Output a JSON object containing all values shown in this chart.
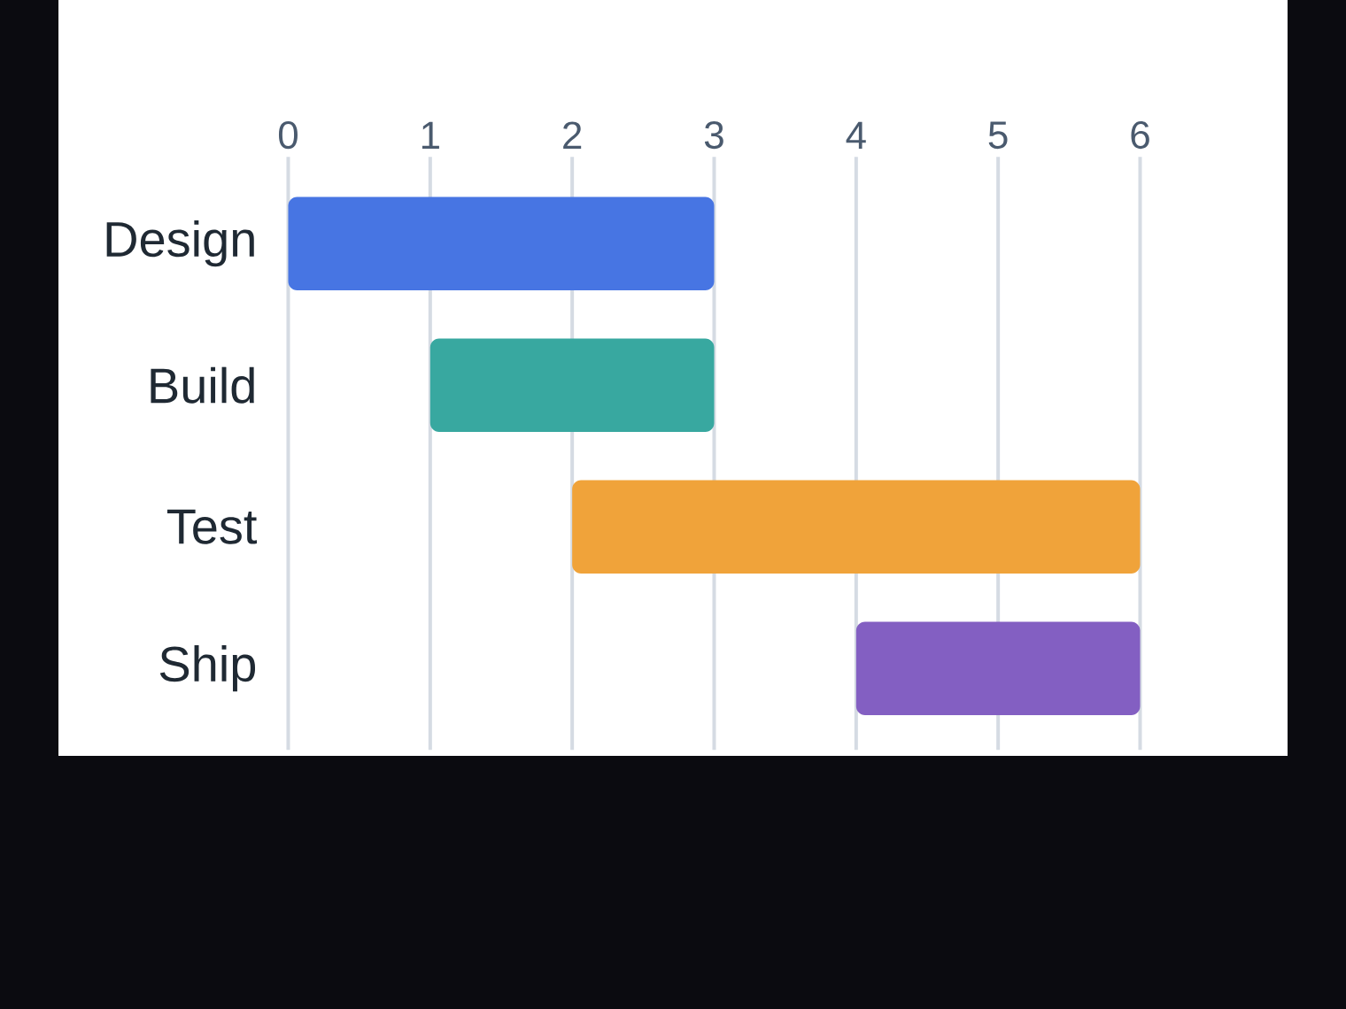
{
  "chart_data": {
    "type": "bar",
    "orientation": "horizontal",
    "categories": [
      "Design",
      "Build",
      "Test",
      "Ship"
    ],
    "base": [
      0,
      1,
      2,
      4
    ],
    "values": [
      3,
      2,
      4,
      2
    ],
    "colors": [
      "#4775e3",
      "#38a8a0",
      "#f0a33a",
      "#835fc2"
    ],
    "xlim": [
      0,
      6
    ],
    "xticks": [
      0,
      1,
      2,
      3,
      4,
      5,
      6
    ],
    "grid": "x"
  }
}
